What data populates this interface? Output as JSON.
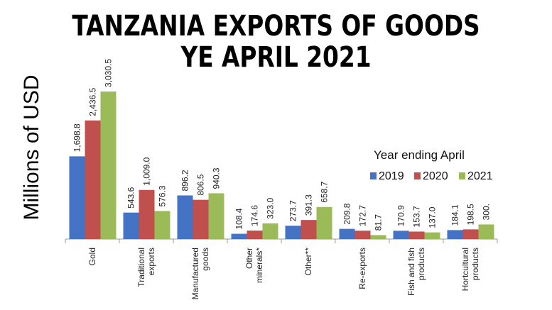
{
  "chart_data": {
    "type": "bar",
    "title_line1": "TANZANIA EXPORTS OF GOODS",
    "title_line2": "YE APRIL 2021",
    "ylabel": "Millions of USD",
    "ylim": [
      0,
      3100
    ],
    "grid": false,
    "legend_title": "Year ending  April",
    "legend_position": "right",
    "categories": [
      [
        "Gold"
      ],
      [
        "Traditional",
        "exports"
      ],
      [
        "Manufactured",
        "goods"
      ],
      [
        "Other",
        "minerals*"
      ],
      [
        "Other**"
      ],
      [
        "Re-exports"
      ],
      [
        "Fish and fish",
        "products"
      ],
      [
        "Hortcultural",
        "products"
      ]
    ],
    "series": [
      {
        "name": "2019",
        "color": "#4472c4",
        "values": [
          1698.8,
          543.6,
          896.2,
          108.4,
          273.7,
          209.8,
          170.9,
          184.1
        ],
        "labels": [
          "1,698.8",
          "543.6",
          "896.2",
          "108.4",
          "273.7",
          "209.8",
          "170.9",
          "184.1"
        ]
      },
      {
        "name": "2020",
        "color": "#c0504d",
        "values": [
          2436.5,
          1009.0,
          806.5,
          174.6,
          391.3,
          172.7,
          153.7,
          198.5
        ],
        "labels": [
          "2,436.5",
          "1,009.0",
          "806.5",
          "174.6",
          "391.3",
          "172.7",
          "153.7",
          "198.5"
        ]
      },
      {
        "name": "2021",
        "color": "#9bbb59",
        "values": [
          3030.5,
          576.3,
          940.3,
          323.0,
          658.7,
          81.7,
          137.0,
          300.0
        ],
        "labels": [
          "3,030.5",
          "576.3",
          "940.3",
          "323.0",
          "658.7",
          "81.7",
          "137.0",
          "300."
        ]
      }
    ]
  }
}
